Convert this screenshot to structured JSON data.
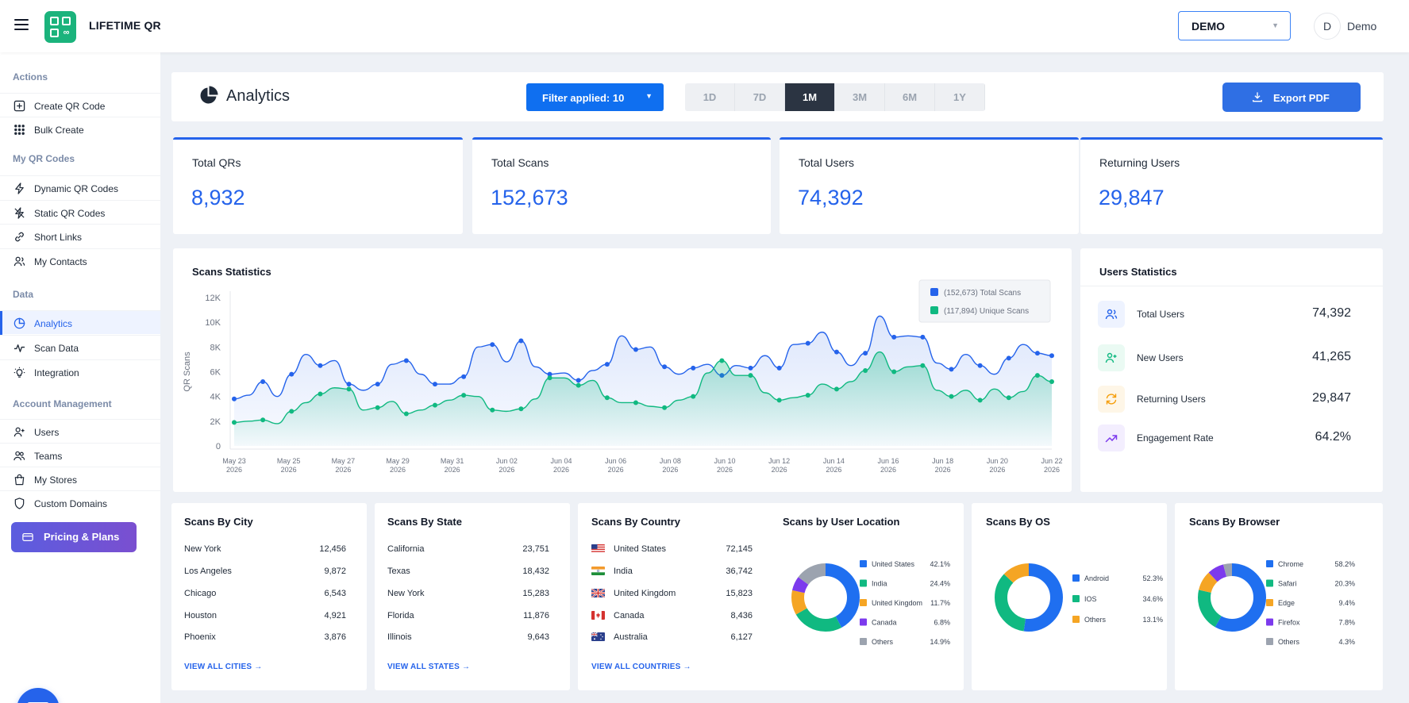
{
  "app": {
    "brand": "LIFETIME QR",
    "workspace": "DEMO",
    "user_initial": "D",
    "user_name": "Demo"
  },
  "sidebar": {
    "sections": [
      {
        "title": "Actions",
        "items": [
          {
            "label": "Create QR Code",
            "icon": "plus-square-icon"
          },
          {
            "label": "Bulk Create",
            "icon": "grid-dots-icon"
          }
        ]
      },
      {
        "title": "My QR Codes",
        "items": [
          {
            "label": "Dynamic QR Codes",
            "icon": "bolt-icon"
          },
          {
            "label": "Static QR Codes",
            "icon": "bolt-off-icon"
          },
          {
            "label": "Short Links",
            "icon": "link-icon"
          },
          {
            "label": "My Contacts",
            "icon": "contacts-icon"
          }
        ]
      },
      {
        "title": "Data",
        "items": [
          {
            "label": "Analytics",
            "icon": "pie-chart-icon",
            "active": true
          },
          {
            "label": "Scan Data",
            "icon": "activity-icon"
          },
          {
            "label": "Integration",
            "icon": "bulb-icon"
          }
        ]
      },
      {
        "title": "Account Management",
        "items": [
          {
            "label": "Users",
            "icon": "user-plus-icon"
          },
          {
            "label": "Teams",
            "icon": "team-icon"
          },
          {
            "label": "My Stores",
            "icon": "store-bag-icon"
          },
          {
            "label": "Custom Domains",
            "icon": "shield-icon"
          }
        ]
      }
    ],
    "pricing_label": "Pricing & Plans"
  },
  "header": {
    "title": "Analytics",
    "filter_label": "Filter applied: 10",
    "ranges": [
      "1D",
      "7D",
      "1M",
      "3M",
      "6M",
      "1Y"
    ],
    "selected_range": "1M",
    "export_label": "Export PDF"
  },
  "stats": [
    {
      "title": "Total QRs",
      "value": "8,932"
    },
    {
      "title": "Total Scans",
      "value": "152,673"
    },
    {
      "title": "Total Users",
      "value": "74,392"
    },
    {
      "title": "Returning Users",
      "value": "29,847"
    }
  ],
  "scans_statistics": {
    "title": "Scans Statistics",
    "chart_data": {
      "type": "area",
      "ylabel": "QR Scans",
      "ylim": [
        0,
        12000
      ],
      "yticks": [
        "0",
        "2K",
        "4K",
        "6K",
        "8K",
        "10K",
        "12K"
      ],
      "xtick_labels": [
        [
          "May 23",
          "2026"
        ],
        [
          "May 25",
          "2026"
        ],
        [
          "May 27",
          "2026"
        ],
        [
          "May 29",
          "2026"
        ],
        [
          "May 31",
          "2026"
        ],
        [
          "Jun 02",
          "2026"
        ],
        [
          "Jun 04",
          "2026"
        ],
        [
          "Jun 06",
          "2026"
        ],
        [
          "Jun 08",
          "2026"
        ],
        [
          "Jun 10",
          "2026"
        ],
        [
          "Jun 12",
          "2026"
        ],
        [
          "Jun 14",
          "2026"
        ],
        [
          "Jun 16",
          "2026"
        ],
        [
          "Jun 18",
          "2026"
        ],
        [
          "Jun 20",
          "2026"
        ],
        [
          "Jun 22",
          "2026"
        ]
      ],
      "series": [
        {
          "name": "(152,673) Total Scans",
          "color": "#2563eb",
          "values": [
            3800,
            4100,
            5200,
            4000,
            5800,
            7400,
            6500,
            6900,
            5000,
            4500,
            5000,
            6600,
            6900,
            5800,
            5000,
            5000,
            5600,
            8000,
            8200,
            6800,
            8500,
            6400,
            5800,
            5900,
            5300,
            6100,
            6600,
            8900,
            7800,
            8000,
            6400,
            5800,
            6300,
            6600,
            5700,
            6500,
            6300,
            7300,
            6300,
            8200,
            8300,
            9200,
            7600,
            6500,
            7500,
            10500,
            8800,
            8900,
            8800,
            6700,
            6200,
            7400,
            6500,
            5800,
            7100,
            8200,
            7500,
            7300
          ]
        },
        {
          "name": "(117,894) Unique Scans",
          "color": "#10b981",
          "values": [
            1900,
            2000,
            2100,
            1800,
            2800,
            3500,
            4200,
            4700,
            4600,
            2900,
            3100,
            3600,
            2600,
            2900,
            3300,
            3700,
            4100,
            4000,
            2900,
            2800,
            3000,
            3800,
            5500,
            5500,
            4900,
            5300,
            3900,
            3500,
            3500,
            3200,
            3100,
            3700,
            4000,
            5900,
            6900,
            5700,
            5700,
            4300,
            3700,
            3900,
            4100,
            5000,
            4600,
            5200,
            6100,
            7600,
            6000,
            6400,
            6500,
            4500,
            4000,
            4500,
            3700,
            4600,
            3900,
            4400,
            5700,
            5200
          ]
        }
      ],
      "legend_position": "top-right"
    }
  },
  "users_statistics": {
    "title": "Users Statistics",
    "rows": [
      {
        "label": "Total Users",
        "value": "74,392",
        "icon": "users-icon",
        "color": "#2563eb",
        "bg": "#eef3ff"
      },
      {
        "label": "New Users",
        "value": "41,265",
        "icon": "user-plus-icon",
        "color": "#10b981",
        "bg": "#eafaf3"
      },
      {
        "label": "Returning Users",
        "value": "29,847",
        "icon": "refresh-icon",
        "color": "#f59e0b",
        "bg": "#fef6e7"
      },
      {
        "label": "Engagement Rate",
        "value": "64.2%",
        "icon": "trending-up-icon",
        "color": "#7c3aed",
        "bg": "#f3eefe"
      }
    ]
  },
  "by_city": {
    "title": "Scans By City",
    "rows": [
      {
        "name": "New York",
        "value": "12,456"
      },
      {
        "name": "Los Angeles",
        "value": "9,872"
      },
      {
        "name": "Chicago",
        "value": "6,543"
      },
      {
        "name": "Houston",
        "value": "4,921"
      },
      {
        "name": "Phoenix",
        "value": "3,876"
      }
    ],
    "view_all": "VIEW ALL CITIES"
  },
  "by_state": {
    "title": "Scans By State",
    "rows": [
      {
        "name": "California",
        "value": "23,751"
      },
      {
        "name": "Texas",
        "value": "18,432"
      },
      {
        "name": "New York",
        "value": "15,283"
      },
      {
        "name": "Florida",
        "value": "11,876"
      },
      {
        "name": "Illinois",
        "value": "9,643"
      }
    ],
    "view_all": "VIEW ALL STATES"
  },
  "by_country": {
    "title": "Scans By Country",
    "rows": [
      {
        "name": "United States",
        "value": "72,145",
        "flag": "us"
      },
      {
        "name": "India",
        "value": "36,742",
        "flag": "in"
      },
      {
        "name": "United Kingdom",
        "value": "15,823",
        "flag": "gb"
      },
      {
        "name": "Canada",
        "value": "8,436",
        "flag": "ca"
      },
      {
        "name": "Australia",
        "value": "6,127",
        "flag": "au"
      }
    ],
    "view_all": "VIEW ALL COUNTRIES"
  },
  "by_location": {
    "title": "Scans by User Location",
    "chart_data": {
      "type": "pie",
      "categories": [
        "United States",
        "India",
        "United Kingdom",
        "Canada",
        "Others"
      ],
      "labels": [
        "42.1%",
        "24.4%",
        "11.7%",
        "6.8%",
        "14.9%"
      ],
      "values": [
        42.1,
        24.4,
        11.7,
        6.8,
        14.9
      ],
      "colors": [
        "#1f6ff0",
        "#10b981",
        "#f5a524",
        "#7c3aed",
        "#9ca3af"
      ]
    }
  },
  "by_os": {
    "title": "Scans By OS",
    "chart_data": {
      "type": "pie",
      "categories": [
        "Android",
        "IOS",
        "Others"
      ],
      "labels": [
        "52.3%",
        "34.6%",
        "13.1%"
      ],
      "values": [
        52.3,
        34.6,
        13.1
      ],
      "colors": [
        "#1f6ff0",
        "#10b981",
        "#f5a524"
      ]
    }
  },
  "by_browser": {
    "title": "Scans By Browser",
    "chart_data": {
      "type": "pie",
      "categories": [
        "Chrome",
        "Safari",
        "Edge",
        "Firefox",
        "Others"
      ],
      "labels": [
        "58.2%",
        "20.3%",
        "9.4%",
        "7.8%",
        "4.3%"
      ],
      "values": [
        58.2,
        20.3,
        9.4,
        7.8,
        4.3
      ],
      "colors": [
        "#1f6ff0",
        "#10b981",
        "#f5a524",
        "#7c3aed",
        "#9ca3af"
      ]
    }
  }
}
